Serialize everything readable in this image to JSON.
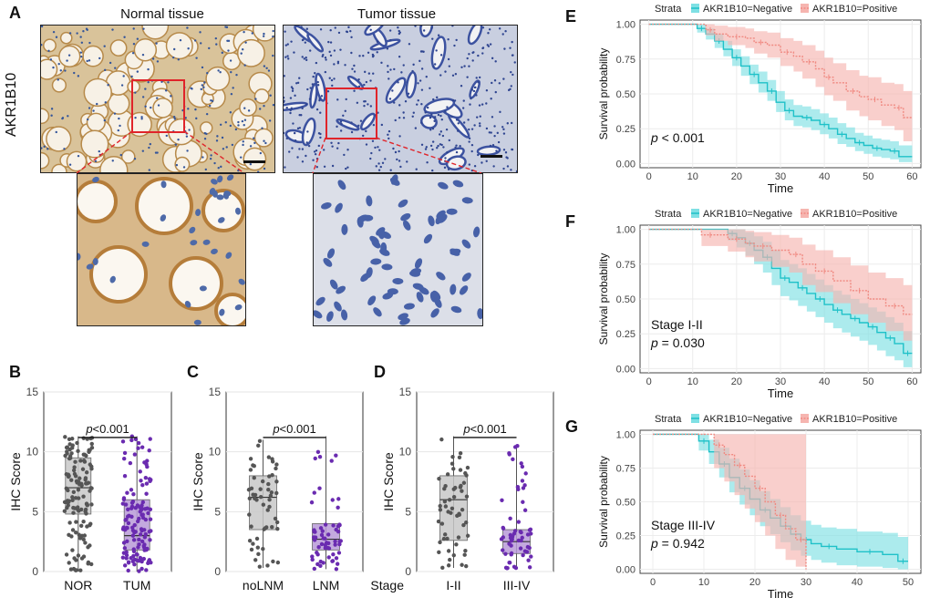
{
  "panel_labels": {
    "A": "A",
    "B": "B",
    "C": "C",
    "D": "D",
    "E": "E",
    "F": "F",
    "G": "G"
  },
  "panel_a": {
    "row_label": "AKR1B10",
    "left_title": "Normal tissue",
    "right_title": "Tumor tissue"
  },
  "colors": {
    "negative": "#1fc1c8",
    "positive": "#f08a82",
    "negative_fill": "#7fe0e4",
    "positive_fill": "#f6b5b0",
    "box_gray": "#c8c8c8",
    "box_purple": "#b89ad8",
    "dot_gray": "#555555",
    "dot_purple": "#6a2bb0",
    "inset_box": "#e0242a"
  },
  "chart_data": [
    {
      "id": "B",
      "type": "box",
      "ylabel": "IHC Score",
      "ylim": [
        0,
        15
      ],
      "yticks": [
        "0",
        "5",
        "10",
        "15"
      ],
      "categories": [
        "NOR",
        "TUM"
      ],
      "boxes": [
        {
          "name": "NOR",
          "q1": 4.8,
          "median": 7.0,
          "q3": 9.5,
          "min": 0.0,
          "max": 11.3,
          "n": 130
        },
        {
          "name": "TUM",
          "q1": 1.8,
          "median": 3.0,
          "q3": 6.0,
          "min": 0.0,
          "max": 11.3,
          "n": 130
        }
      ],
      "annotation": {
        "p_italic": "p",
        "text": "<0.001"
      }
    },
    {
      "id": "C",
      "type": "box",
      "ylabel": "IHC Score",
      "ylim": [
        0,
        15
      ],
      "yticks": [
        "0",
        "5",
        "10",
        "15"
      ],
      "categories": [
        "noLNM",
        "LNM"
      ],
      "boxes": [
        {
          "name": "noLNM",
          "q1": 3.5,
          "median": 6.2,
          "q3": 8.0,
          "min": 0.3,
          "max": 11.0,
          "n": 55
        },
        {
          "name": "LNM",
          "q1": 1.8,
          "median": 2.7,
          "q3": 4.0,
          "min": 0.2,
          "max": 11.3,
          "n": 60
        }
      ],
      "annotation": {
        "p_italic": "p",
        "text": "<0.001"
      }
    },
    {
      "id": "D",
      "type": "box",
      "ylabel": "IHC Score",
      "ylim": [
        0,
        15
      ],
      "yticks": [
        "0",
        "5",
        "10",
        "15"
      ],
      "categories": [
        "I-II",
        "III-IV"
      ],
      "xprefix": "Stage",
      "boxes": [
        {
          "name": "I-II",
          "q1": 2.6,
          "median": 6.0,
          "q3": 8.0,
          "min": 0.3,
          "max": 11.3,
          "n": 55
        },
        {
          "name": "III-IV",
          "q1": 1.5,
          "median": 2.5,
          "q3": 3.5,
          "min": 0.2,
          "max": 10.5,
          "n": 60
        }
      ],
      "annotation": {
        "p_italic": "p",
        "text": "<0.001"
      }
    },
    {
      "id": "E",
      "type": "line",
      "legend_title": "Strata",
      "legend": [
        "AKR1B10=Negative",
        "AKR1B10=Positive"
      ],
      "xlabel": "Time",
      "ylabel": "Survival probability",
      "xlim": [
        -2,
        62
      ],
      "ylim": [
        -0.03,
        1.03
      ],
      "xticks": [
        0,
        10,
        20,
        30,
        40,
        50,
        60
      ],
      "yticks": [
        0,
        0.25,
        0.5,
        0.75,
        1.0
      ],
      "annotation_lines": [],
      "p_text": " < 0.001",
      "series": [
        {
          "name": "AKR1B10=Negative",
          "step": [
            [
              0,
              1
            ],
            [
              9,
              1
            ],
            [
              11,
              0.97
            ],
            [
              13,
              0.93
            ],
            [
              15,
              0.88
            ],
            [
              17,
              0.82
            ],
            [
              19,
              0.76
            ],
            [
              21,
              0.7
            ],
            [
              23,
              0.64
            ],
            [
              25,
              0.58
            ],
            [
              27,
              0.52
            ],
            [
              29,
              0.44
            ],
            [
              31,
              0.38
            ],
            [
              33,
              0.34
            ],
            [
              35,
              0.33
            ],
            [
              37,
              0.31
            ],
            [
              39,
              0.28
            ],
            [
              41,
              0.25
            ],
            [
              43,
              0.21
            ],
            [
              45,
              0.18
            ],
            [
              47,
              0.15
            ],
            [
              49,
              0.13
            ],
            [
              51,
              0.11
            ],
            [
              53,
              0.1
            ],
            [
              55,
              0.09
            ],
            [
              57,
              0.05
            ],
            [
              60,
              0.05
            ]
          ],
          "lower": [
            1,
            1,
            0.94,
            0.89,
            0.83,
            0.77,
            0.7,
            0.63,
            0.57,
            0.51,
            0.45,
            0.37,
            0.31,
            0.27,
            0.26,
            0.24,
            0.21,
            0.18,
            0.14,
            0.12,
            0.09,
            0.07,
            0.05,
            0.04,
            0.03,
            0.01,
            0.01
          ],
          "upper": [
            1,
            1,
            1,
            0.97,
            0.93,
            0.88,
            0.82,
            0.77,
            0.71,
            0.66,
            0.6,
            0.52,
            0.46,
            0.42,
            0.41,
            0.39,
            0.36,
            0.33,
            0.29,
            0.26,
            0.22,
            0.2,
            0.18,
            0.17,
            0.16,
            0.13,
            0.13
          ]
        },
        {
          "name": "AKR1B10=Positive",
          "step": [
            [
              0,
              1
            ],
            [
              11,
              1
            ],
            [
              13,
              0.96
            ],
            [
              15,
              0.93
            ],
            [
              18,
              0.91
            ],
            [
              22,
              0.9
            ],
            [
              24,
              0.87
            ],
            [
              27,
              0.85
            ],
            [
              30,
              0.8
            ],
            [
              33,
              0.77
            ],
            [
              35,
              0.73
            ],
            [
              38,
              0.68
            ],
            [
              40,
              0.62
            ],
            [
              42,
              0.58
            ],
            [
              45,
              0.52
            ],
            [
              48,
              0.48
            ],
            [
              50,
              0.46
            ],
            [
              53,
              0.42
            ],
            [
              56,
              0.4
            ],
            [
              58,
              0.33
            ],
            [
              60,
              0.33
            ]
          ],
          "lower": [
            1,
            1,
            0.92,
            0.88,
            0.85,
            0.83,
            0.79,
            0.76,
            0.7,
            0.66,
            0.61,
            0.55,
            0.49,
            0.45,
            0.38,
            0.34,
            0.31,
            0.27,
            0.24,
            0.16,
            0.16
          ],
          "upper": [
            1,
            1,
            1,
            0.99,
            0.98,
            0.97,
            0.95,
            0.94,
            0.9,
            0.88,
            0.85,
            0.81,
            0.76,
            0.72,
            0.67,
            0.63,
            0.62,
            0.58,
            0.57,
            0.52,
            0.52
          ]
        }
      ]
    },
    {
      "id": "F",
      "type": "line",
      "legend_title": "Strata",
      "legend": [
        "AKR1B10=Negative",
        "AKR1B10=Positive"
      ],
      "xlabel": "Time",
      "ylabel": "Survival probability",
      "xlim": [
        -2,
        62
      ],
      "ylim": [
        -0.03,
        1.03
      ],
      "xticks": [
        0,
        10,
        20,
        30,
        40,
        50,
        60
      ],
      "yticks": [
        0,
        0.25,
        0.5,
        0.75,
        1.0
      ],
      "annotation_lines": [
        "Stage I-II"
      ],
      "p_text": " = 0.030",
      "series": [
        {
          "name": "AKR1B10=Negative",
          "step": [
            [
              0,
              1
            ],
            [
              16,
              1
            ],
            [
              18,
              0.97
            ],
            [
              20,
              0.94
            ],
            [
              22,
              0.9
            ],
            [
              24,
              0.85
            ],
            [
              26,
              0.8
            ],
            [
              28,
              0.72
            ],
            [
              30,
              0.65
            ],
            [
              32,
              0.62
            ],
            [
              34,
              0.58
            ],
            [
              36,
              0.54
            ],
            [
              38,
              0.5
            ],
            [
              40,
              0.46
            ],
            [
              42,
              0.42
            ],
            [
              44,
              0.39
            ],
            [
              46,
              0.36
            ],
            [
              48,
              0.33
            ],
            [
              50,
              0.3
            ],
            [
              52,
              0.26
            ],
            [
              54,
              0.22
            ],
            [
              56,
              0.18
            ],
            [
              58,
              0.11
            ],
            [
              60,
              0.11
            ]
          ],
          "lower": [
            1,
            1,
            0.92,
            0.87,
            0.81,
            0.75,
            0.69,
            0.6,
            0.52,
            0.49,
            0.45,
            0.41,
            0.37,
            0.33,
            0.29,
            0.26,
            0.23,
            0.2,
            0.17,
            0.13,
            0.09,
            0.06,
            0.01,
            0.01
          ],
          "upper": [
            1,
            1,
            1,
            1,
            0.98,
            0.95,
            0.91,
            0.85,
            0.78,
            0.75,
            0.72,
            0.68,
            0.64,
            0.6,
            0.56,
            0.53,
            0.5,
            0.47,
            0.44,
            0.41,
            0.37,
            0.33,
            0.27,
            0.27
          ]
        },
        {
          "name": "AKR1B10=Positive",
          "step": [
            [
              0,
              1
            ],
            [
              10,
              1
            ],
            [
              12,
              0.96
            ],
            [
              16,
              0.96
            ],
            [
              18,
              0.93
            ],
            [
              22,
              0.9
            ],
            [
              24,
              0.88
            ],
            [
              28,
              0.85
            ],
            [
              32,
              0.82
            ],
            [
              35,
              0.75
            ],
            [
              38,
              0.7
            ],
            [
              42,
              0.63
            ],
            [
              46,
              0.56
            ],
            [
              50,
              0.5
            ],
            [
              54,
              0.45
            ],
            [
              58,
              0.39
            ],
            [
              60,
              0.39
            ]
          ],
          "lower": [
            1,
            1,
            0.88,
            0.88,
            0.84,
            0.8,
            0.77,
            0.73,
            0.69,
            0.6,
            0.55,
            0.47,
            0.39,
            0.33,
            0.27,
            0.2,
            0.2
          ],
          "upper": [
            1,
            1,
            1,
            1,
            1,
            0.99,
            0.98,
            0.96,
            0.94,
            0.89,
            0.85,
            0.8,
            0.74,
            0.69,
            0.65,
            0.6,
            0.6
          ]
        }
      ]
    },
    {
      "id": "G",
      "type": "line",
      "legend_title": "Strata",
      "legend": [
        "AKR1B10=Negative",
        "AKR1B10=Positive"
      ],
      "xlabel": "Time",
      "ylabel": "Survival probability",
      "xlim": [
        -2.5,
        52.5
      ],
      "ylim": [
        -0.03,
        1.03
      ],
      "xticks": [
        0,
        10,
        20,
        30,
        40,
        50
      ],
      "yticks": [
        0,
        0.25,
        0.5,
        0.75,
        1.0
      ],
      "annotation_lines": [
        "Stage III-IV"
      ],
      "p_text": " = 0.942",
      "series": [
        {
          "name": "AKR1B10=Negative",
          "step": [
            [
              0,
              1
            ],
            [
              7,
              1
            ],
            [
              9,
              0.95
            ],
            [
              11,
              0.87
            ],
            [
              13,
              0.78
            ],
            [
              15,
              0.68
            ],
            [
              17,
              0.6
            ],
            [
              19,
              0.52
            ],
            [
              21,
              0.44
            ],
            [
              23,
              0.38
            ],
            [
              25,
              0.32
            ],
            [
              27,
              0.26
            ],
            [
              29,
              0.22
            ],
            [
              31,
              0.19
            ],
            [
              33,
              0.17
            ],
            [
              36,
              0.15
            ],
            [
              40,
              0.13
            ],
            [
              45,
              0.11
            ],
            [
              48,
              0.06
            ],
            [
              50,
              0.06
            ]
          ],
          "lower": [
            1,
            1,
            0.88,
            0.78,
            0.68,
            0.57,
            0.48,
            0.4,
            0.32,
            0.26,
            0.2,
            0.14,
            0.1,
            0.07,
            0.05,
            0.03,
            0.02,
            0.01,
            0.0,
            0.0
          ],
          "upper": [
            1,
            1,
            1,
            0.96,
            0.9,
            0.82,
            0.74,
            0.66,
            0.58,
            0.52,
            0.46,
            0.4,
            0.36,
            0.33,
            0.31,
            0.3,
            0.28,
            0.27,
            0.24,
            0.24
          ]
        },
        {
          "name": "AKR1B10=Positive",
          "step": [
            [
              0,
              1
            ],
            [
              10,
              1
            ],
            [
              12,
              0.92
            ],
            [
              14,
              0.85
            ],
            [
              16,
              0.77
            ],
            [
              18,
              0.69
            ],
            [
              20,
              0.6
            ],
            [
              22,
              0.5
            ],
            [
              24,
              0.4
            ],
            [
              26,
              0.3
            ],
            [
              28,
              0.22
            ],
            [
              30,
              0.0
            ]
          ],
          "lower": [
            1,
            1,
            0.75,
            0.65,
            0.55,
            0.45,
            0.35,
            0.25,
            0.15,
            0.07,
            0.02,
            0.0
          ],
          "upper": [
            1,
            1,
            1,
            1,
            1,
            1,
            1,
            1,
            1,
            1,
            1,
            1
          ]
        }
      ]
    }
  ]
}
